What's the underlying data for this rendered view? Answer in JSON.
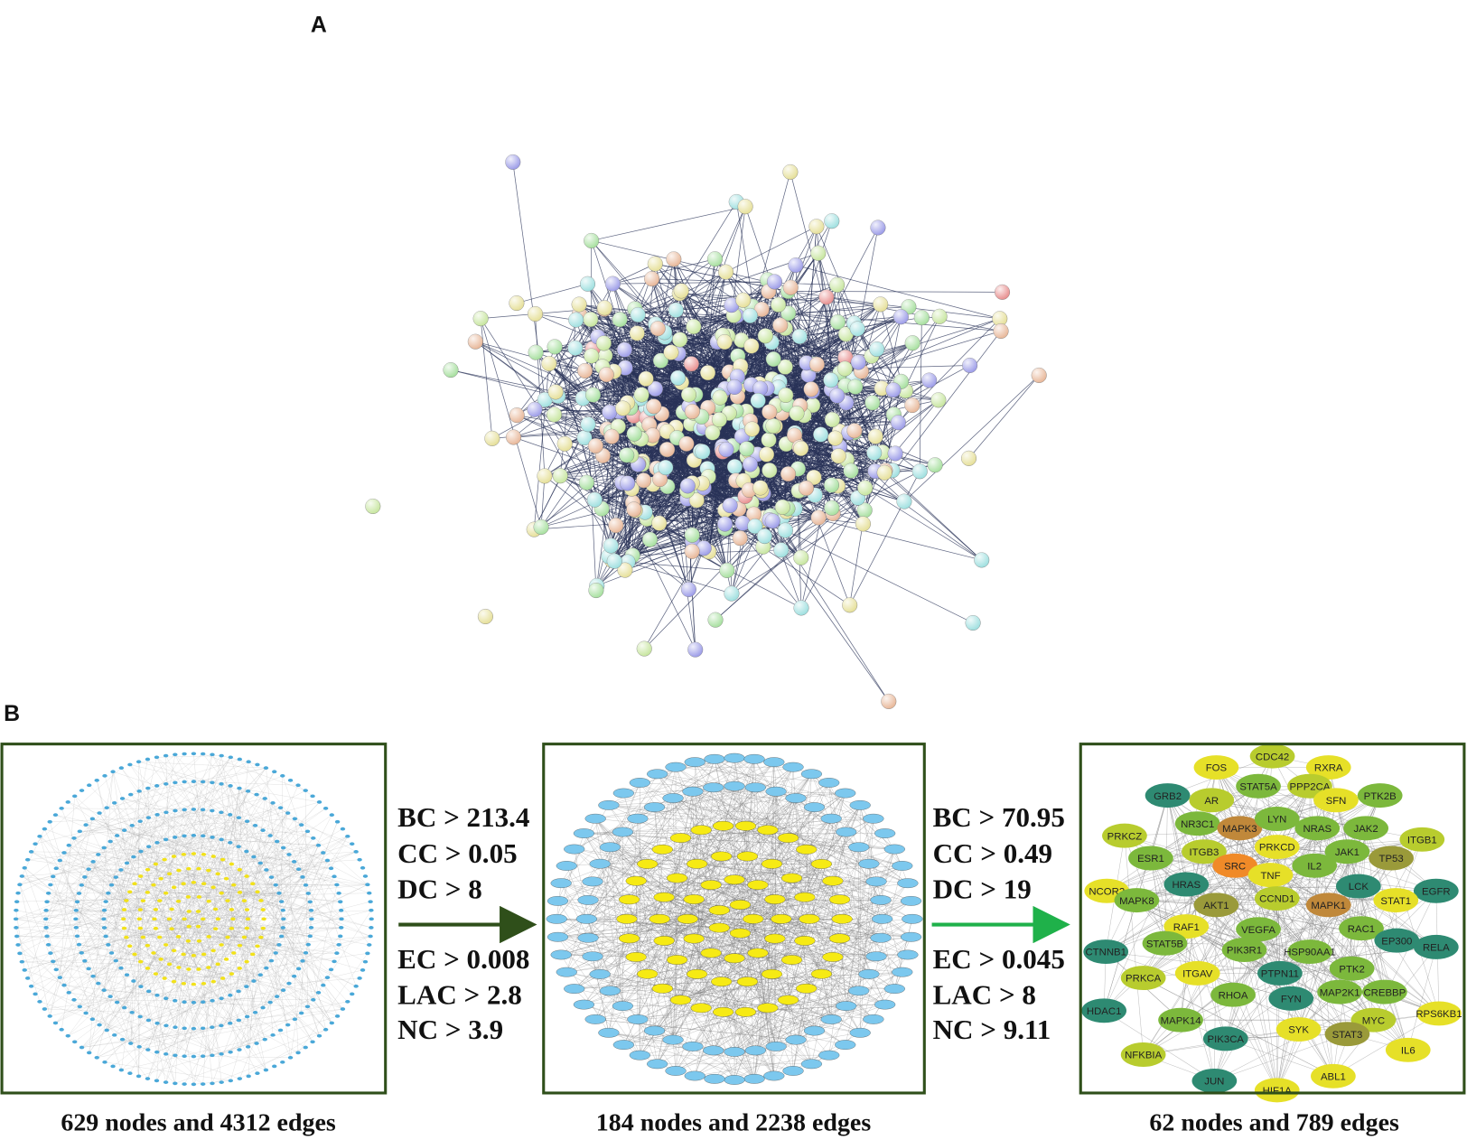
{
  "panel_a": {
    "label": "A"
  },
  "panel_b": {
    "label": "B",
    "networks": [
      {
        "caption": "629 nodes and 4312 edges"
      },
      {
        "caption": "184 nodes and 2238 edges"
      },
      {
        "caption": "62 nodes and 789 edges"
      }
    ],
    "filters": [
      {
        "criteria": [
          "BC > 213.4",
          "CC > 0.05",
          "DC > 8",
          "EC > 0.008",
          "LAC > 2.8",
          "NC > 3.9"
        ]
      },
      {
        "criteria": [
          "BC > 70.95",
          "CC > 0.49",
          "DC > 19",
          "EC > 0.045",
          "LAC > 8",
          "NC > 9.11"
        ]
      }
    ],
    "hub_genes": [
      "FOS",
      "CDC42",
      "RXRA",
      "GRB2",
      "AR",
      "STAT5A",
      "PPP2CA",
      "SFN",
      "PTK2B",
      "PRKCZ",
      "NR3C1",
      "MAPK3",
      "LYN",
      "NRAS",
      "JAK2",
      "ITGB1",
      "ESR1",
      "ITGB3",
      "PRKCD",
      "JAK1",
      "TP53",
      "SRC",
      "TNF",
      "IL2",
      "NCOR2",
      "HRAS",
      "LCK",
      "EGFR",
      "MAPK8",
      "AKT1",
      "CCND1",
      "MAPK1",
      "STAT1",
      "RAF1",
      "RAC1",
      "CTNNB1",
      "STAT5B",
      "VEGFA",
      "PIK3R1",
      "HSP90AA1",
      "EP300",
      "RELA",
      "ITGAV",
      "PTPN11",
      "PTK2",
      "PRKCA",
      "RHOA",
      "FYN",
      "MAP2K1",
      "CREBBP",
      "HDAC1",
      "MAPK14",
      "MYC",
      "RPS6KB1",
      "PIK3CA",
      "SYK",
      "STAT3",
      "NFKBIA",
      "IL6",
      "JUN",
      "HIF1A",
      "ABL1"
    ]
  }
}
